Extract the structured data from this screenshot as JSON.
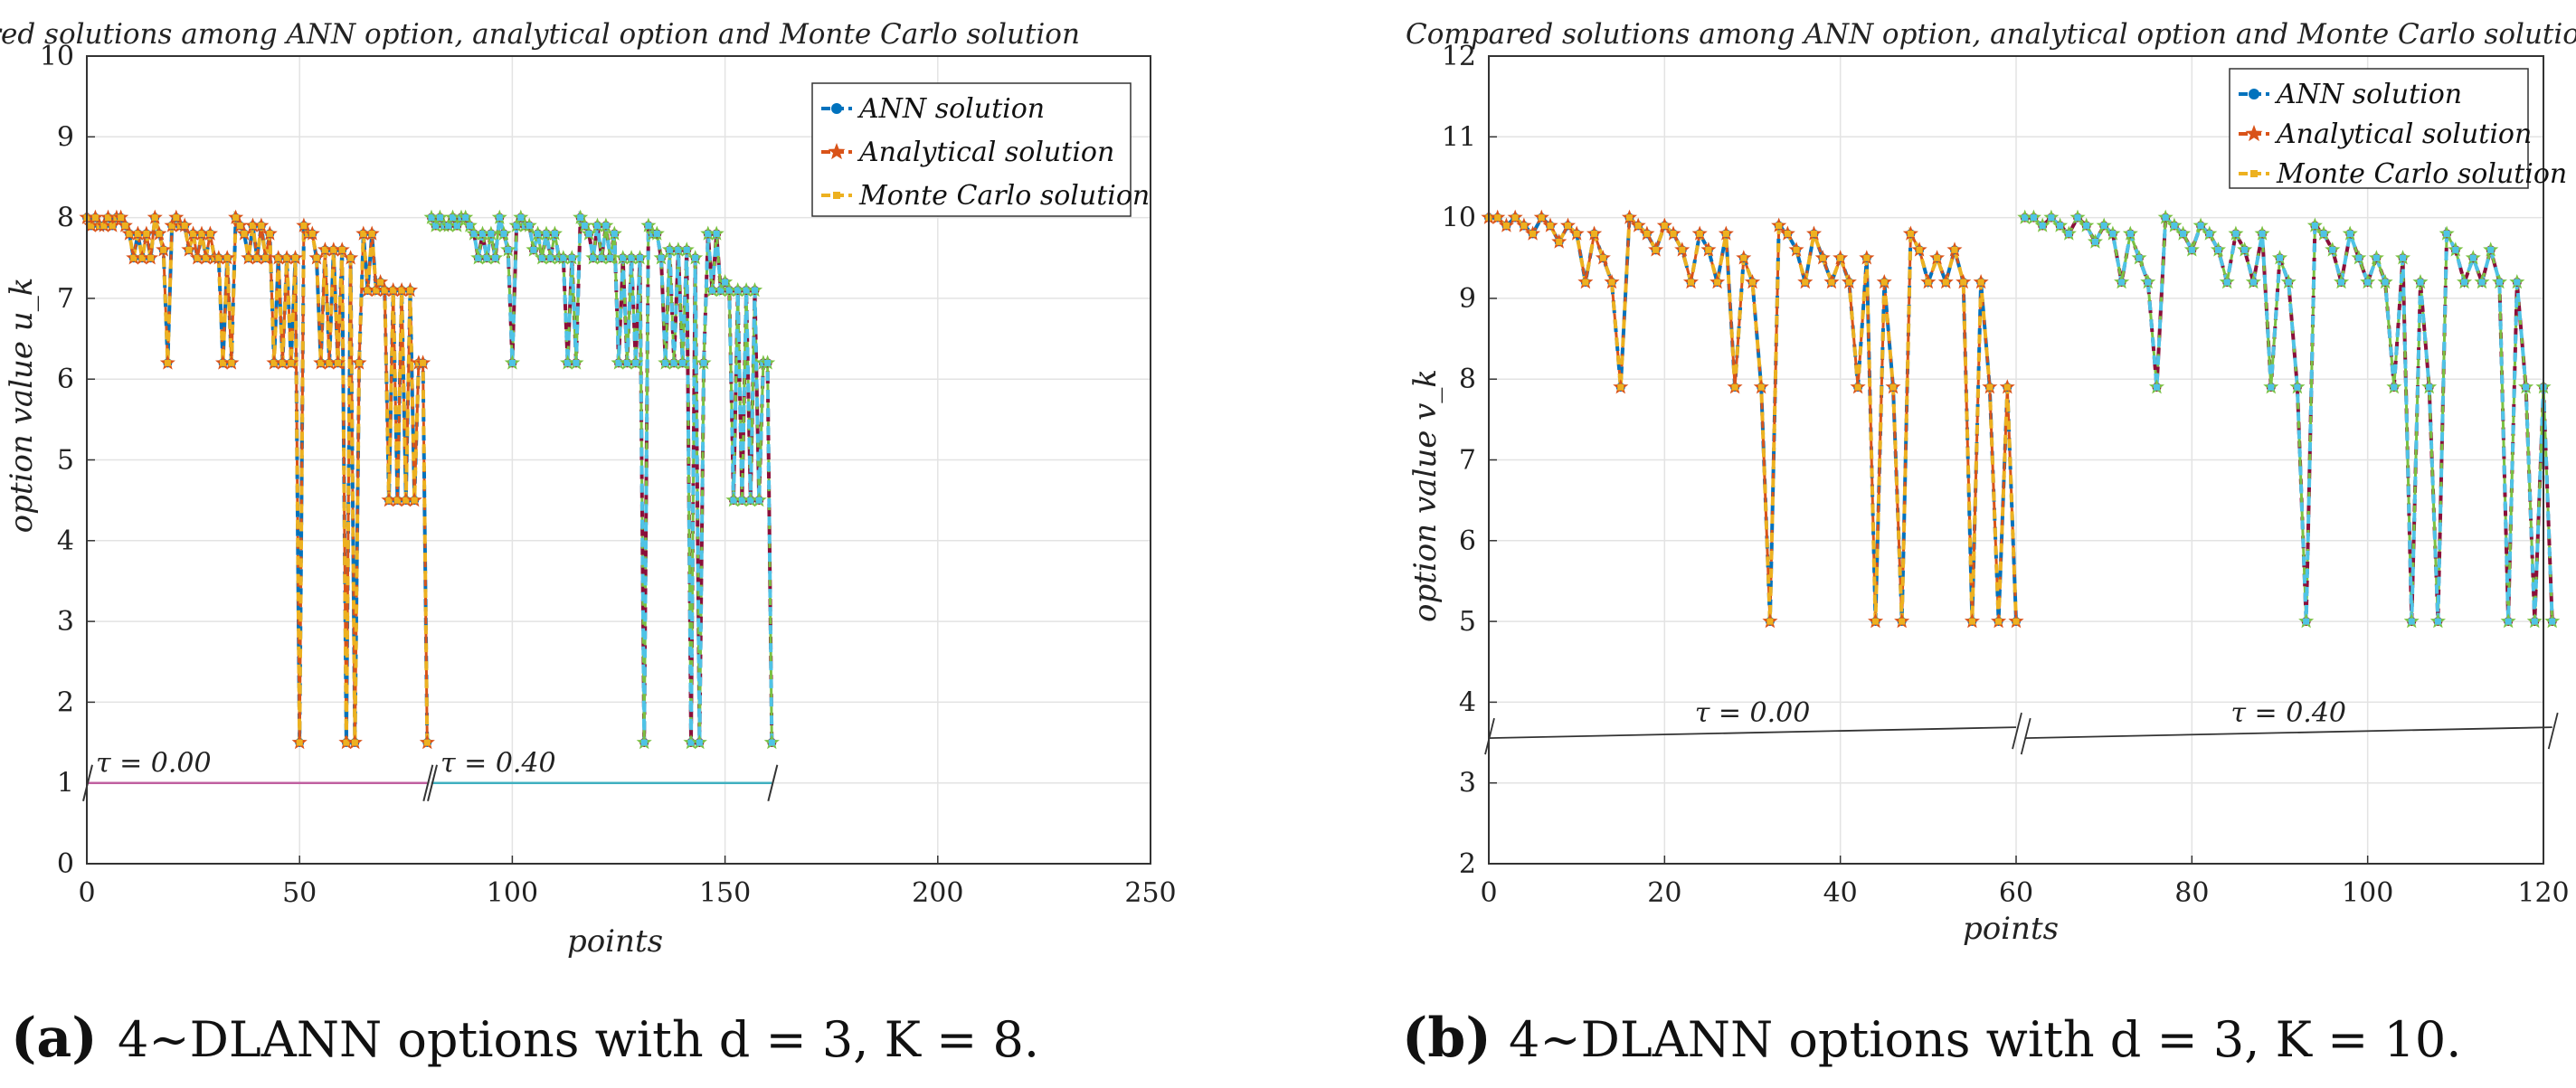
{
  "chart_data": [
    {
      "type": "line",
      "title": "Compared solutions among ANN option, analytical option and Monte Carlo solution",
      "xlabel": "points",
      "ylabel": "option value u_k",
      "xlim": [
        0,
        250
      ],
      "ylim": [
        0,
        10
      ],
      "xticks": [
        0,
        50,
        100,
        150,
        200,
        250
      ],
      "yticks": [
        0,
        1,
        2,
        3,
        4,
        5,
        6,
        7,
        8,
        9,
        10
      ],
      "grid": true,
      "legend": "top-right",
      "caption_label": "(a)",
      "caption_text": "4∼DLANN options with d = 3, K = 8.",
      "segments": [
        {
          "label": "τ = 0.00",
          "line_y": 1,
          "line_color": "#c060a0",
          "values": [
            8,
            7.9,
            8,
            7.9,
            7.9,
            8,
            7.9,
            8,
            8,
            7.9,
            7.8,
            7.5,
            7.8,
            7.5,
            7.8,
            7.5,
            8,
            7.8,
            7.6,
            6.2,
            7.9,
            8,
            7.9,
            7.9,
            7.6,
            7.8,
            7.5,
            7.8,
            7.5,
            7.8,
            7.5,
            7.5,
            6.2,
            7.5,
            6.2,
            8,
            7.9,
            7.8,
            7.5,
            7.9,
            7.5,
            7.9,
            7.5,
            7.8,
            6.2,
            7.5,
            6.2,
            7.5,
            6.2,
            7.5,
            1.5,
            7.9,
            7.8,
            7.8,
            7.5,
            6.2,
            7.6,
            6.2,
            7.6,
            6.2,
            7.6,
            1.5,
            7.5,
            1.5,
            6.2,
            7.8,
            7.1,
            7.8,
            7.1,
            7.2,
            7.1,
            4.5,
            7.1,
            4.5,
            7.1,
            4.5,
            7.1,
            4.5,
            6.2,
            6.2,
            1.5
          ]
        },
        {
          "label": "τ = 0.40",
          "line_y": 1,
          "line_color": "#40b0c0",
          "values": [
            8,
            7.9,
            8,
            7.9,
            7.9,
            8,
            7.9,
            8,
            8,
            7.9,
            7.8,
            7.5,
            7.8,
            7.5,
            7.8,
            7.5,
            8,
            7.8,
            7.6,
            6.2,
            7.9,
            8,
            7.9,
            7.9,
            7.6,
            7.8,
            7.5,
            7.8,
            7.5,
            7.8,
            7.5,
            7.5,
            6.2,
            7.5,
            6.2,
            8,
            7.9,
            7.8,
            7.5,
            7.9,
            7.5,
            7.9,
            7.5,
            7.8,
            6.2,
            7.5,
            6.2,
            7.5,
            6.2,
            7.5,
            1.5,
            7.9,
            7.8,
            7.8,
            7.5,
            6.2,
            7.6,
            6.2,
            7.6,
            6.2,
            7.6,
            1.5,
            7.5,
            1.5,
            6.2,
            7.8,
            7.1,
            7.8,
            7.1,
            7.2,
            7.1,
            4.5,
            7.1,
            4.5,
            7.1,
            4.5,
            7.1,
            4.5,
            6.2,
            6.2,
            1.5
          ]
        }
      ],
      "series": [
        {
          "name": "ANN solution",
          "color": "#0072bd",
          "marker": "circle"
        },
        {
          "name": "Analytical solution",
          "color": "#d95319",
          "marker": "star"
        },
        {
          "name": "Monte Carlo solution",
          "color": "#edb120",
          "marker": "square"
        }
      ]
    },
    {
      "type": "line",
      "title": "Compared solutions among ANN option, analytical option and Monte Carlo solution",
      "xlabel": "points",
      "ylabel": "option value v_k",
      "xlim": [
        0,
        120
      ],
      "ylim": [
        2,
        12
      ],
      "xticks": [
        0,
        20,
        40,
        60,
        80,
        100,
        120
      ],
      "yticks": [
        2,
        3,
        4,
        5,
        6,
        7,
        8,
        9,
        10,
        11,
        12
      ],
      "grid": true,
      "legend": "top-right",
      "caption_label": "(b)",
      "caption_text": "4∼DLANN options with d = 3, K = 10.",
      "segments": [
        {
          "label": "τ = 0.00",
          "line_y": 3.6,
          "line_color": "#333333",
          "values": [
            10,
            10,
            9.9,
            10,
            9.9,
            9.8,
            10,
            9.9,
            9.7,
            9.9,
            9.8,
            9.2,
            9.8,
            9.5,
            9.2,
            7.9,
            10,
            9.9,
            9.8,
            9.6,
            9.9,
            9.8,
            9.6,
            9.2,
            9.8,
            9.6,
            9.2,
            9.8,
            7.9,
            9.5,
            9.2,
            7.9,
            5,
            9.9,
            9.8,
            9.6,
            9.2,
            9.8,
            9.5,
            9.2,
            9.5,
            9.2,
            7.9,
            9.5,
            5,
            9.2,
            7.9,
            5,
            9.8,
            9.6,
            9.2,
            9.5,
            9.2,
            9.6,
            9.2,
            5,
            9.2,
            7.9,
            5,
            7.9,
            5
          ]
        },
        {
          "label": "τ = 0.40",
          "line_y": 3.6,
          "line_color": "#333333",
          "values": [
            10,
            10,
            9.9,
            10,
            9.9,
            9.8,
            10,
            9.9,
            9.7,
            9.9,
            9.8,
            9.2,
            9.8,
            9.5,
            9.2,
            7.9,
            10,
            9.9,
            9.8,
            9.6,
            9.9,
            9.8,
            9.6,
            9.2,
            9.8,
            9.6,
            9.2,
            9.8,
            7.9,
            9.5,
            9.2,
            7.9,
            5,
            9.9,
            9.8,
            9.6,
            9.2,
            9.8,
            9.5,
            9.2,
            9.5,
            9.2,
            7.9,
            9.5,
            5,
            9.2,
            7.9,
            5,
            9.8,
            9.6,
            9.2,
            9.5,
            9.2,
            9.6,
            9.2,
            5,
            9.2,
            7.9,
            5,
            7.9,
            5
          ]
        }
      ],
      "series": [
        {
          "name": "ANN solution",
          "color": "#0072bd",
          "marker": "circle"
        },
        {
          "name": "Analytical solution",
          "color": "#d95319",
          "marker": "star"
        },
        {
          "name": "Monte Carlo solution",
          "color": "#edb120",
          "marker": "square"
        }
      ]
    }
  ]
}
